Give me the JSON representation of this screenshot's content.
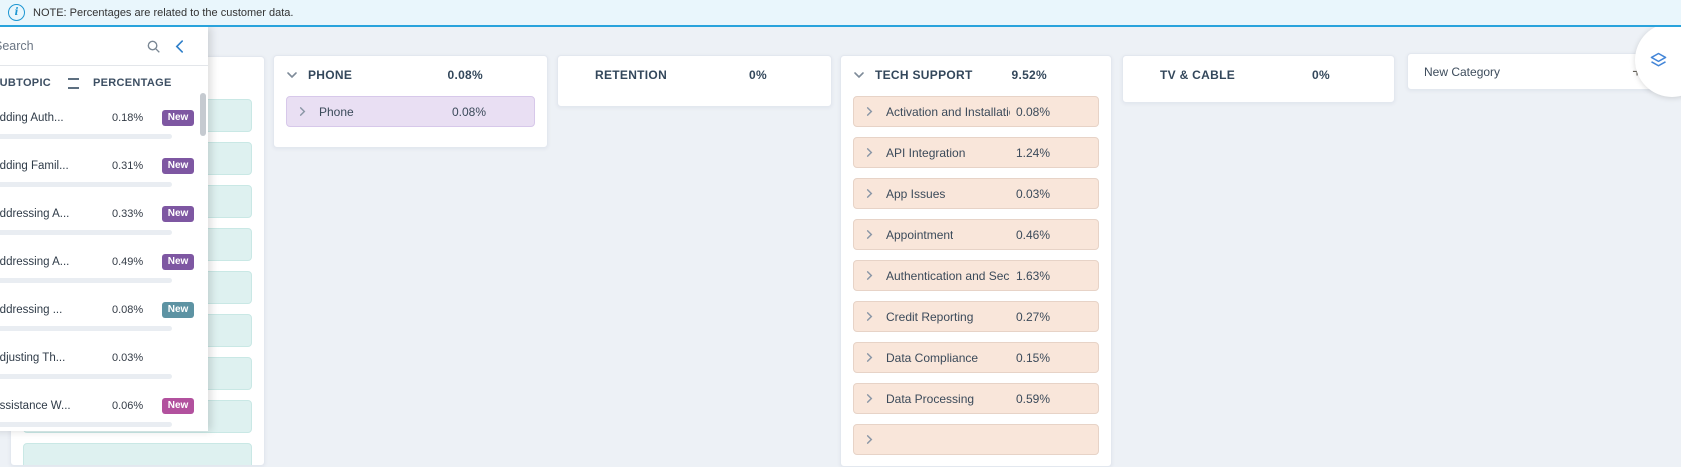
{
  "note": {
    "text": "NOTE: Percentages are related to the customer data.",
    "icon": "info-circle",
    "accent_color": "#29a3dc",
    "background": "#e9f6fc"
  },
  "sidebar": {
    "search": {
      "placeholder": "Search",
      "value": ""
    },
    "icons": {
      "search": "magnifier",
      "collapse": "chevron-left",
      "sort": "double-bar"
    },
    "columns": {
      "subtopic": "SUBTOPIC",
      "percentage": "PERCENTAGE"
    },
    "rows": [
      {
        "name": "Adding Auth...",
        "percentage": "0.18%",
        "badge": "New",
        "badge_color": "#7e57a2"
      },
      {
        "name": "Adding Famil...",
        "percentage": "0.31%",
        "badge": "New",
        "badge_color": "#7e57a2"
      },
      {
        "name": "Addressing A...",
        "percentage": "0.33%",
        "badge": "New",
        "badge_color": "#7e57a2"
      },
      {
        "name": "Addressing A...",
        "percentage": "0.49%",
        "badge": "New",
        "badge_color": "#7e57a2"
      },
      {
        "name": "Addressing ...",
        "percentage": "0.08%",
        "badge": "New",
        "badge_color": "#5d93a3"
      },
      {
        "name": "Adjusting Th...",
        "percentage": "0.03%",
        "badge": null,
        "badge_color": null
      },
      {
        "name": "Assistance W...",
        "percentage": "0.06%",
        "badge": "New",
        "badge_color": "#b2519e"
      }
    ]
  },
  "board": {
    "background": "#edf1f6",
    "categories": [
      {
        "id": "phone",
        "name": "PHONE",
        "percentage": "0.08%",
        "expanded": true,
        "row_bg": "#e9dff3",
        "row_border": "#d7c8ea",
        "subtopics": [
          {
            "name": "Phone",
            "percentage": "0.08%"
          }
        ],
        "clipped_extra_row": false
      },
      {
        "id": "retention",
        "name": "RETENTION",
        "percentage": "0%",
        "expanded": false,
        "row_bg": null,
        "row_border": null,
        "subtopics": [],
        "clipped_extra_row": false
      },
      {
        "id": "tech-support",
        "name": "TECH SUPPORT",
        "percentage": "9.52%",
        "expanded": true,
        "row_bg": "#f9e6da",
        "row_border": "#e7d3c7",
        "subtopics": [
          {
            "name": "Activation and Installation",
            "percentage": "0.08%"
          },
          {
            "name": "API Integration",
            "percentage": "1.24%"
          },
          {
            "name": "App Issues",
            "percentage": "0.03%"
          },
          {
            "name": "Appointment",
            "percentage": "0.46%"
          },
          {
            "name": "Authentication and Security",
            "percentage": "1.63%"
          },
          {
            "name": "Credit Reporting",
            "percentage": "0.27%"
          },
          {
            "name": "Data Compliance",
            "percentage": "0.15%"
          },
          {
            "name": "Data Processing",
            "percentage": "0.59%"
          }
        ],
        "clipped_extra_row": true
      },
      {
        "id": "tv-cable",
        "name": "TV & CABLE",
        "percentage": "0%",
        "expanded": false,
        "row_bg": null,
        "row_border": null,
        "subtopics": [],
        "clipped_extra_row": false
      }
    ],
    "partial_column": {
      "visible_row_count": 9,
      "row_bg": "#def1f0",
      "row_border": "#c9e8e5"
    },
    "new_category": {
      "label": "New Category",
      "plus": "+"
    }
  },
  "floating_button": {
    "icon": "layers"
  }
}
